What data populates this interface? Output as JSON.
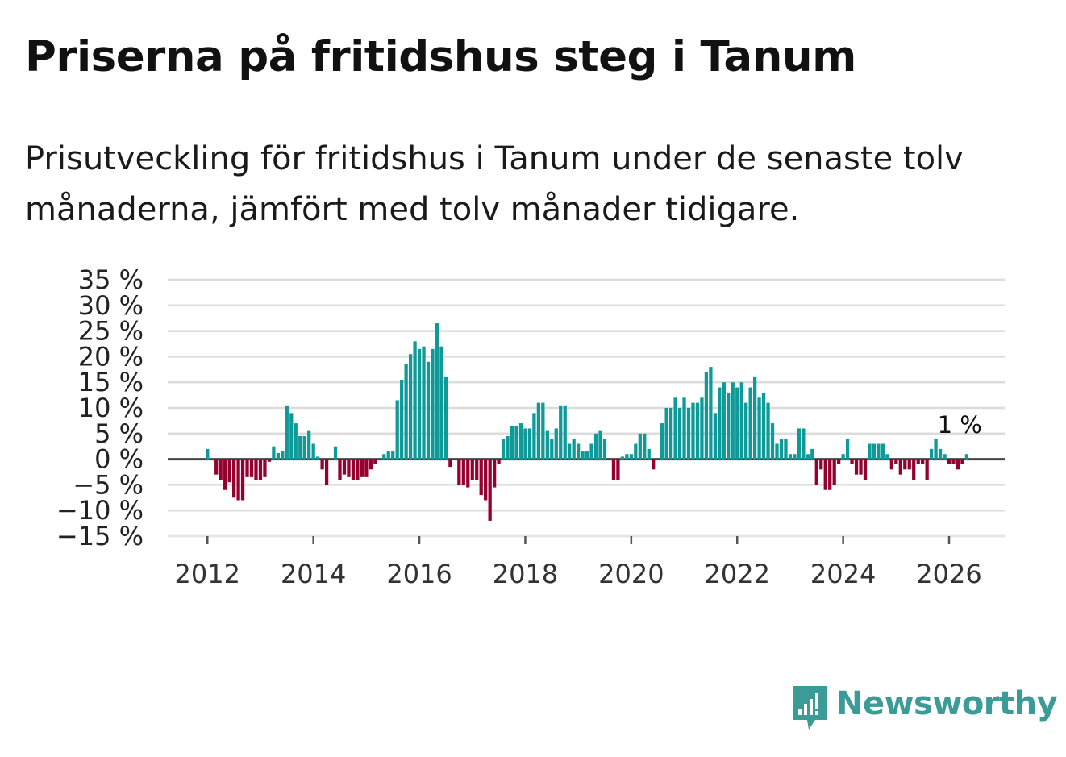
{
  "title": "Priserna på fritidshus steg i Tanum",
  "subtitle": "Prisutveckling för fritidshus i Tanum under de senaste tolv månaderna, jämfört med tolv månader tidigare.",
  "brand": {
    "name": "Newsworthy"
  },
  "colors": {
    "positive": "#0e9a98",
    "negative": "#96002f",
    "grid": "#dcdcdc",
    "zero_line": "#444444"
  },
  "chart_data": {
    "type": "bar",
    "ylim": [
      -15,
      35
    ],
    "xlim": [
      2011.25,
      2027.05
    ],
    "y_ticks": [
      35,
      30,
      25,
      20,
      15,
      10,
      5,
      0,
      -5,
      -10,
      -15
    ],
    "y_tick_labels": [
      "35 %",
      "30 %",
      "25 %",
      "20 %",
      "15 %",
      "10 %",
      "5 %",
      "0 %",
      "−5 %",
      "−10 %",
      "−15 %"
    ],
    "x_ticks": [
      2012,
      2014,
      2016,
      2018,
      2020,
      2022,
      2024,
      2026
    ],
    "x_tick_labels": [
      "2012",
      "2014",
      "2016",
      "2018",
      "2020",
      "2022",
      "2024",
      "2026"
    ],
    "grid": true,
    "annotation": {
      "text": "1 %",
      "x": 2026.17,
      "y": 1
    },
    "start": "2012-01",
    "values": [
      2,
      0,
      -3,
      -4,
      -6,
      -4.5,
      -7.5,
      -8,
      -8,
      -3.5,
      -3.5,
      -4,
      -4,
      -3.5,
      -0.5,
      2.5,
      1.2,
      1.5,
      10.5,
      9,
      7,
      4.5,
      4.5,
      5.5,
      3,
      0.5,
      -2,
      -5,
      0,
      2.5,
      -4,
      -3,
      -3.5,
      -4,
      -4,
      -3.5,
      -3.5,
      -2,
      -1,
      0,
      1,
      1.5,
      1.5,
      11.5,
      15.5,
      18.5,
      20.5,
      23,
      21.5,
      22,
      19,
      21.5,
      26.5,
      22,
      16,
      -1.5,
      0,
      -5,
      -5,
      -5.5,
      -4,
      -4,
      -7,
      -8,
      -12,
      -5.5,
      -1,
      4,
      4.5,
      6.5,
      6.5,
      7,
      6,
      6,
      9,
      11,
      11,
      5.5,
      4,
      6,
      10.5,
      10.5,
      3,
      4,
      3,
      1.5,
      1.5,
      3,
      5,
      5.5,
      4,
      0,
      -4,
      -4,
      0.5,
      1,
      1,
      3,
      5,
      5,
      2,
      -2,
      0,
      7,
      10,
      10,
      12,
      10,
      12,
      10,
      11,
      11,
      12,
      17,
      18,
      9,
      14,
      15,
      13,
      15,
      14,
      15,
      11,
      14,
      16,
      12,
      13,
      11,
      7,
      3,
      4,
      4,
      1,
      1,
      6,
      6,
      1,
      2,
      -5,
      -2,
      -6,
      -6,
      -5,
      -1,
      1,
      4,
      -1,
      -3,
      -3,
      -4,
      3,
      3,
      3,
      3,
      1,
      -2,
      -1,
      -3,
      -2,
      -2,
      -4,
      -1,
      -1,
      -4,
      2,
      4,
      2,
      1,
      -1,
      -1,
      -2,
      -1,
      1
    ]
  }
}
